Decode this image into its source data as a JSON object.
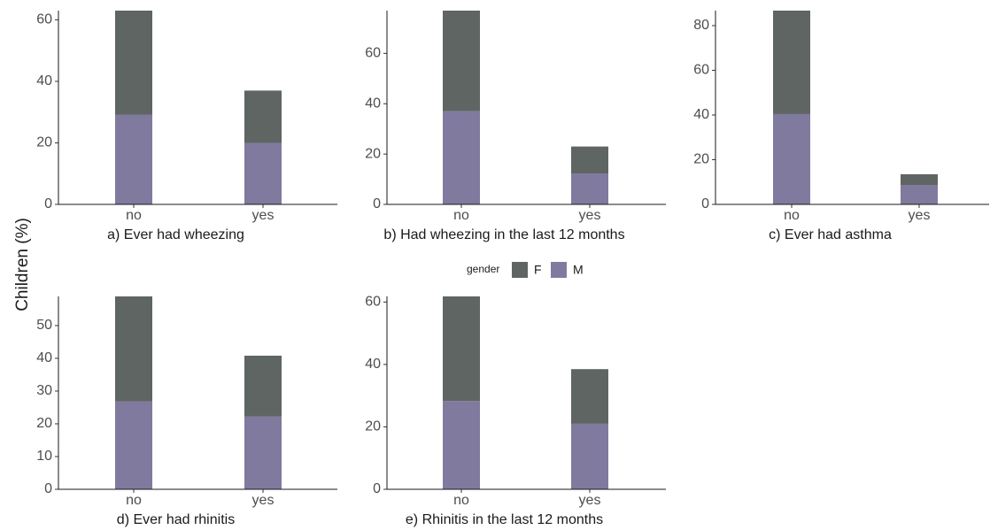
{
  "y_label": "Children (%)",
  "legend_title": "gender",
  "chart_data": [
    {
      "type": "bar",
      "stacked": true,
      "title": "a) Ever had wheezing",
      "categories": [
        "no",
        "yes"
      ],
      "series": [
        {
          "name": "F",
          "color": "#5f6563",
          "values": [
            33.8,
            17
          ]
        },
        {
          "name": "M",
          "color": "#7f7a9e",
          "values": [
            29.2,
            20
          ]
        }
      ],
      "ylim": [
        0,
        63
      ],
      "yticks": [
        0,
        20,
        40,
        60
      ]
    },
    {
      "type": "bar",
      "stacked": true,
      "title": "b) Had wheezing in the last 12 months",
      "categories": [
        "no",
        "yes"
      ],
      "series": [
        {
          "name": "F",
          "color": "#5f6563",
          "values": [
            40,
            10.7
          ]
        },
        {
          "name": "M",
          "color": "#7f7a9e",
          "values": [
            37,
            12.3
          ]
        }
      ],
      "ylim": [
        0,
        77
      ],
      "yticks": [
        0,
        20,
        40,
        60
      ]
    },
    {
      "type": "bar",
      "stacked": true,
      "title": "c) Ever had asthma",
      "categories": [
        "no",
        "yes"
      ],
      "series": [
        {
          "name": "F",
          "color": "#5f6563",
          "values": [
            46.3,
            4.8
          ]
        },
        {
          "name": "M",
          "color": "#7f7a9e",
          "values": [
            40.4,
            8.7
          ]
        }
      ],
      "ylim": [
        0,
        86.7
      ],
      "yticks": [
        0,
        20,
        40,
        60,
        80
      ]
    },
    {
      "type": "bar",
      "stacked": true,
      "title": "d) Ever had rhinitis",
      "categories": [
        "no",
        "yes"
      ],
      "series": [
        {
          "name": "F",
          "color": "#5f6563",
          "values": [
            32.1,
            18.6
          ]
        },
        {
          "name": "M",
          "color": "#7f7a9e",
          "values": [
            26.8,
            22.2
          ]
        }
      ],
      "ylim": [
        0,
        58.9
      ],
      "yticks": [
        0,
        10,
        20,
        30,
        40,
        50
      ]
    },
    {
      "type": "bar",
      "stacked": true,
      "title": "e) Rhinitis in the last 12 months",
      "categories": [
        "no",
        "yes"
      ],
      "series": [
        {
          "name": "F",
          "color": "#5f6563",
          "values": [
            33.5,
            17.5
          ]
        },
        {
          "name": "M",
          "color": "#7f7a9e",
          "values": [
            28.3,
            21
          ]
        }
      ],
      "ylim": [
        0,
        61.8
      ],
      "yticks": [
        0,
        20,
        40,
        60
      ]
    }
  ]
}
